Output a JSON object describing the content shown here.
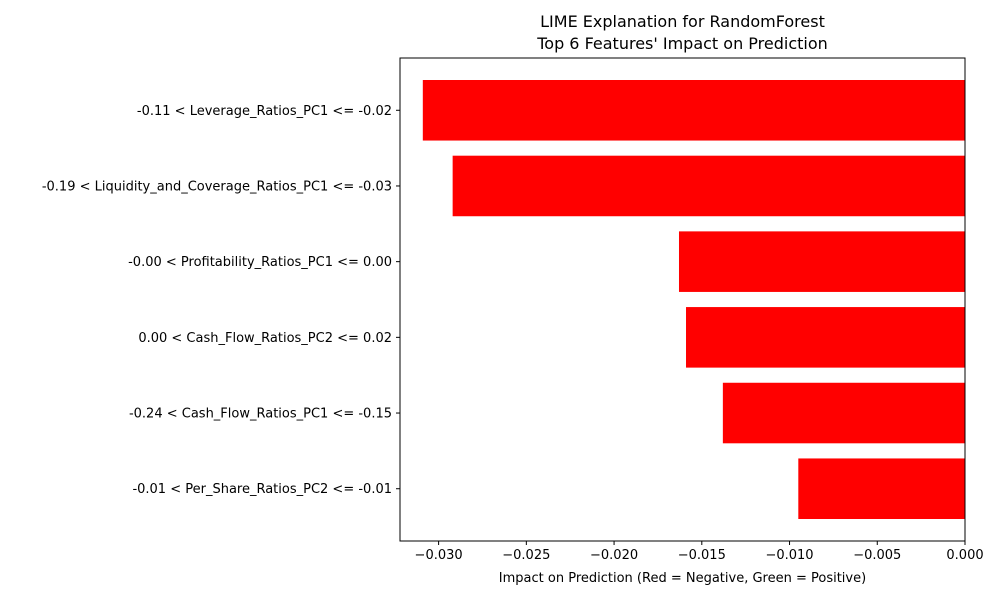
{
  "chart_data": {
    "type": "bar",
    "orientation": "horizontal",
    "title": [
      "LIME Explanation for RandomForest",
      "Top 6 Features' Impact on Prediction"
    ],
    "xlabel": "Impact on Prediction (Red = Negative, Green = Positive)",
    "ylabel": "",
    "xlim": [
      -0.0322,
      0.0
    ],
    "xticks": [
      -0.03,
      -0.025,
      -0.02,
      -0.015,
      -0.01,
      -0.005,
      0.0
    ],
    "xtick_labels": [
      "−0.030",
      "−0.025",
      "−0.020",
      "−0.015",
      "−0.010",
      "−0.005",
      "0.000"
    ],
    "categories": [
      "-0.11 < Leverage_Ratios_PC1 <= -0.02",
      "-0.19 < Liquidity_and_Coverage_Ratios_PC1 <= -0.03",
      "-0.00 < Profitability_Ratios_PC1 <= 0.00",
      "0.00 < Cash_Flow_Ratios_PC2 <= 0.02",
      "-0.24 < Cash_Flow_Ratios_PC1 <= -0.15",
      "-0.01 < Per_Share_Ratios_PC2 <= -0.01"
    ],
    "values": [
      -0.0309,
      -0.0292,
      -0.0163,
      -0.0159,
      -0.0138,
      -0.0095
    ],
    "bar_color": "#ff0000",
    "grid": false,
    "legend": "none"
  }
}
